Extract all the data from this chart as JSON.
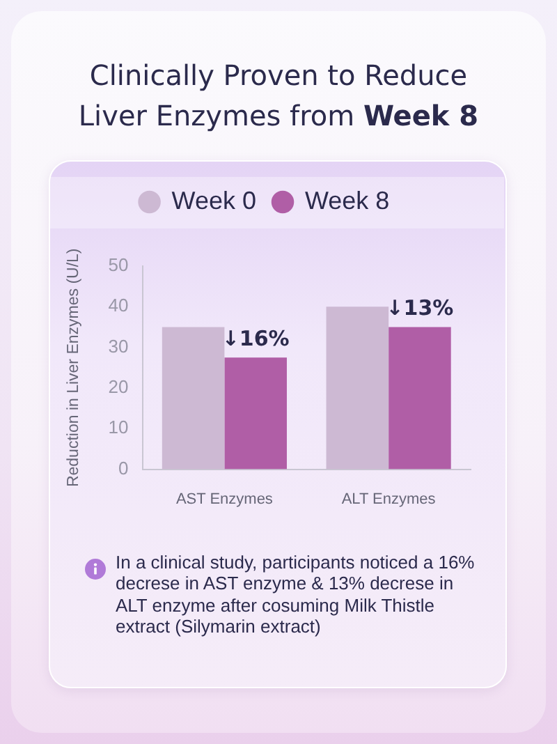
{
  "chart_data": {
    "type": "bar",
    "title": "Clinically Proven to Reduce Liver Enzymes from Week 8",
    "ylabel": "Reduction in Liver Enzymes (U/L)",
    "categories": [
      "AST Enzymes",
      "ALT Enzymes"
    ],
    "series": [
      {
        "name": "Week 0",
        "color": "#cdb9d3",
        "values": [
          35,
          40
        ]
      },
      {
        "name": "Week 8",
        "color": "#b05ea6",
        "values": [
          27.5,
          35
        ]
      }
    ],
    "ylim": [
      0,
      50
    ],
    "yticks": [
      0,
      10,
      20,
      30,
      40,
      50
    ],
    "grid": false,
    "legend": "top",
    "annotations": [
      {
        "text": "↓16%",
        "x": "AST Enzymes",
        "y": 27.5
      },
      {
        "text": "↓13%",
        "x": "ALT Enzymes",
        "y": 35
      },
      "In a clinical study, participants noticed a 16% decrese in AST enzyme & 13% decrese in ALT enzyme after cosuming Milk Thistle extract (Silymarin extract)"
    ]
  }
}
